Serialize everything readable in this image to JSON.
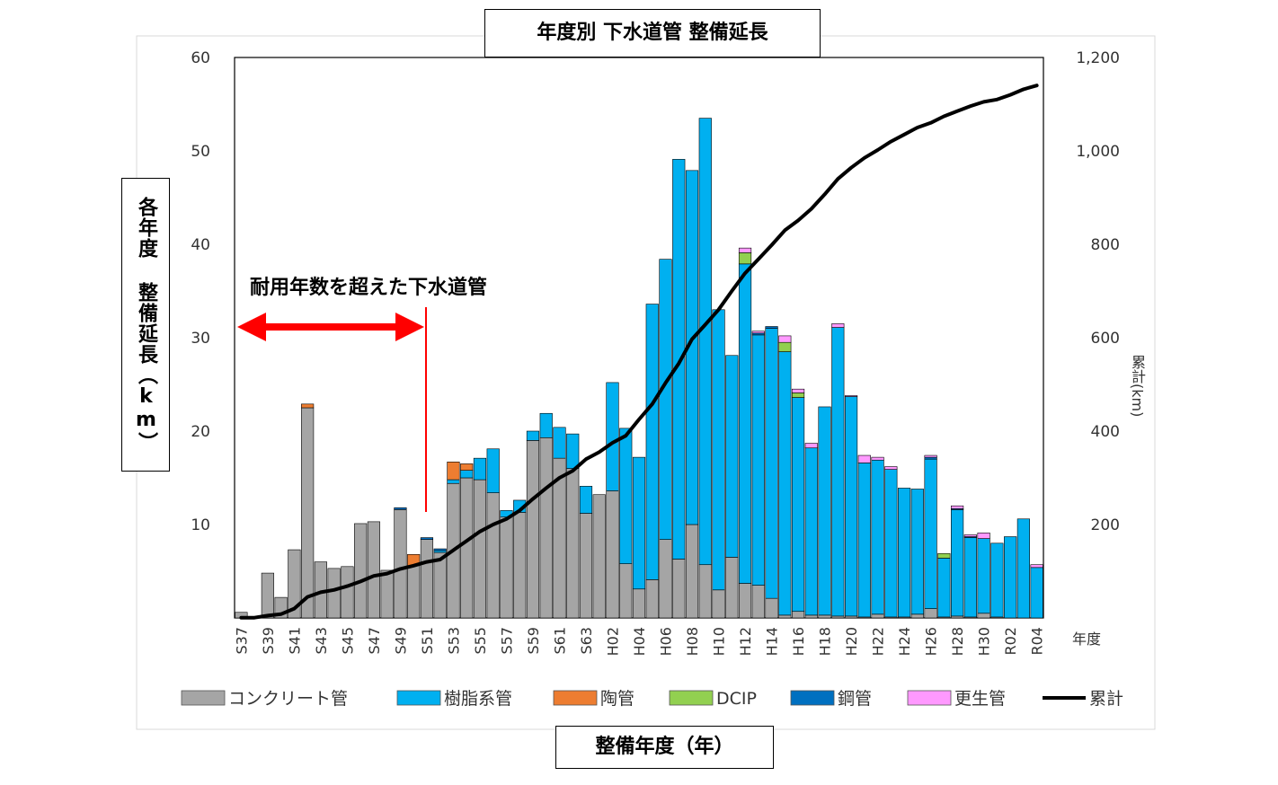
{
  "chart_data": {
    "type": "bar",
    "stacked": true,
    "title": "年度別 下水道管 整備延長",
    "xlabel": "整備年度（年）",
    "ylabel": "各年度 整備延長（km）",
    "y2label": "累計(km)",
    "x_unit": "年度",
    "ylim": [
      0,
      60
    ],
    "y2lim": [
      0,
      1200
    ],
    "yticks": [
      "10",
      "20",
      "30",
      "40",
      "50",
      "60"
    ],
    "y2ticks": [
      "200",
      "400",
      "600",
      "800",
      "1,000",
      "1,200"
    ],
    "categories": [
      "S37",
      "S38",
      "S39",
      "S40",
      "S41",
      "S42",
      "S43",
      "S44",
      "S45",
      "S46",
      "S47",
      "S48",
      "S49",
      "S50",
      "S51",
      "S52",
      "S53",
      "S54",
      "S55",
      "S56",
      "S57",
      "S58",
      "S59",
      "S60",
      "S61",
      "S62",
      "S63",
      "H01",
      "H02",
      "H03",
      "H04",
      "H05",
      "H06",
      "H07",
      "H08",
      "H09",
      "H10",
      "H11",
      "H12",
      "H13",
      "H14",
      "H15",
      "H16",
      "H17",
      "H18",
      "H19",
      "H20",
      "H21",
      "H22",
      "H23",
      "H24",
      "H25",
      "H26",
      "H27",
      "H28",
      "H29",
      "H30",
      "H31",
      "R02",
      "R03",
      "R04"
    ],
    "tick_labels": [
      "S37",
      "S39",
      "S41",
      "S43",
      "S45",
      "S47",
      "S49",
      "S51",
      "S53",
      "S55",
      "S57",
      "S59",
      "S61",
      "S63",
      "H02",
      "H04",
      "H06",
      "H08",
      "H10",
      "H12",
      "H14",
      "H16",
      "H18",
      "H20",
      "H22",
      "H24",
      "H26",
      "H28",
      "H30",
      "R02",
      "R04"
    ],
    "series": [
      {
        "name": "コンクリート管",
        "color": "#a5a5a5",
        "values": [
          0.6,
          0,
          4.8,
          2.2,
          7.3,
          22.5,
          6.0,
          5.3,
          5.5,
          10.1,
          10.3,
          5.1,
          11.6,
          5.6,
          8.4,
          7.0,
          14.4,
          15.0,
          14.8,
          13.4,
          10.8,
          11.3,
          19.0,
          19.3,
          17.1,
          16.0,
          11.2,
          13.2,
          13.6,
          5.8,
          3.1,
          4.1,
          8.4,
          6.3,
          10.0,
          5.7,
          3.0,
          6.5,
          3.7,
          3.5,
          2.1,
          0.3,
          0.7,
          0.3,
          0.3,
          0.2,
          0.2,
          0.1,
          0.4,
          0.1,
          0.1,
          0.4,
          1.0,
          0.1,
          0.2,
          0.1,
          0.5,
          0.1,
          0,
          0,
          0
        ]
      },
      {
        "name": "樹脂系管",
        "color": "#00b0f0",
        "values": [
          0,
          0,
          0,
          0,
          0,
          0,
          0,
          0,
          0,
          0,
          0,
          0,
          0,
          0,
          0,
          0.2,
          0.4,
          0.8,
          2.3,
          4.7,
          0.7,
          1.3,
          1.0,
          2.6,
          3.3,
          3.7,
          2.9,
          0,
          11.6,
          14.5,
          14.1,
          29.5,
          30.0,
          42.8,
          37.9,
          47.8,
          30.0,
          21.6,
          34.2,
          26.8,
          28.9,
          28.2,
          22.9,
          17.9,
          22.3,
          30.9,
          23.5,
          16.5,
          16.5,
          15.8,
          13.8,
          13.4,
          16.0,
          6.3,
          11.4,
          8.5,
          8.0,
          7.9,
          8.7,
          10.6,
          5.4
        ]
      },
      {
        "name": "陶管",
        "color": "#ed7d31",
        "values": [
          0,
          0,
          0,
          0,
          0,
          0.4,
          0,
          0,
          0,
          0,
          0,
          0,
          0,
          1.2,
          0,
          0,
          1.9,
          0.7,
          0,
          0,
          0,
          0,
          0,
          0,
          0,
          0,
          0,
          0,
          0,
          0,
          0,
          0,
          0,
          0,
          0,
          0,
          0,
          0,
          0,
          0,
          0,
          0,
          0,
          0,
          0,
          0,
          0,
          0,
          0,
          0,
          0,
          0,
          0,
          0,
          0,
          0,
          0,
          0,
          0,
          0,
          0
        ]
      },
      {
        "name": "DCIP",
        "color": "#92d050",
        "values": [
          0,
          0,
          0,
          0,
          0,
          0,
          0,
          0,
          0,
          0,
          0,
          0,
          0,
          0,
          0,
          0,
          0,
          0,
          0,
          0,
          0,
          0,
          0,
          0,
          0,
          0,
          0,
          0,
          0,
          0,
          0,
          0,
          0,
          0,
          0,
          0,
          0,
          0,
          1.2,
          0,
          0,
          1.0,
          0.5,
          0,
          0,
          0,
          0,
          0,
          0,
          0,
          0,
          0,
          0,
          0.5,
          0,
          0,
          0,
          0,
          0,
          0,
          0
        ]
      },
      {
        "name": "鋼管",
        "color": "#0070c0",
        "values": [
          0,
          0,
          0,
          0,
          0,
          0,
          0,
          0,
          0,
          0,
          0,
          0,
          0.2,
          0,
          0.2,
          0.2,
          0,
          0,
          0,
          0,
          0,
          0,
          0,
          0,
          0,
          0,
          0,
          0,
          0,
          0,
          0,
          0,
          0,
          0,
          0,
          0,
          0,
          0,
          0,
          0.2,
          0.2,
          0,
          0,
          0,
          0,
          0,
          0,
          0,
          0,
          0,
          0,
          0,
          0.2,
          0,
          0.1,
          0.1,
          0,
          0,
          0,
          0,
          0
        ]
      },
      {
        "name": "更生管",
        "color": "#ff99ff",
        "values": [
          0,
          0,
          0,
          0,
          0,
          0,
          0,
          0,
          0,
          0,
          0,
          0,
          0,
          0,
          0,
          0,
          0,
          0,
          0,
          0,
          0,
          0,
          0,
          0,
          0,
          0,
          0,
          0,
          0,
          0,
          0,
          0,
          0,
          0,
          0,
          0,
          0,
          0,
          0.5,
          0.2,
          0,
          0.7,
          0.4,
          0.5,
          0,
          0.4,
          0.1,
          0.8,
          0.3,
          0.3,
          0,
          0,
          0.2,
          0,
          0.3,
          0.2,
          0.6,
          0,
          0,
          0,
          0.3
        ]
      }
    ],
    "cumulative": {
      "name": "累計",
      "color": "#000000",
      "values": [
        0.6,
        0.6,
        5,
        8,
        20,
        45,
        55,
        60,
        68,
        78,
        90,
        95,
        105,
        112,
        120,
        125,
        145,
        165,
        185,
        200,
        212,
        230,
        255,
        278,
        300,
        315,
        340,
        355,
        375,
        390,
        425,
        458,
        503,
        545,
        597,
        628,
        660,
        700,
        738,
        768,
        798,
        830,
        851,
        876,
        907,
        940,
        964,
        985,
        1002,
        1020,
        1035,
        1050,
        1060,
        1074,
        1085,
        1096,
        1105,
        1110,
        1120,
        1132,
        1140
      ]
    },
    "annotation": "耐用年数を超えた下水道管",
    "legend_position": "bottom"
  }
}
